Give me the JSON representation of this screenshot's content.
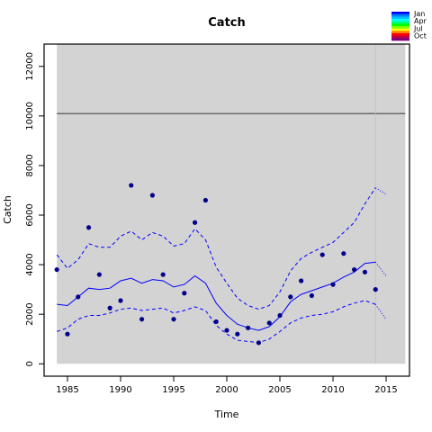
{
  "chart_data": {
    "type": "line",
    "title": "Catch",
    "xlabel": "Time",
    "ylabel": "Catch",
    "xlim": [
      1982.8,
      2017.2
    ],
    "ylim": [
      -500,
      12900
    ],
    "x_ticks": [
      1985,
      1990,
      1995,
      2000,
      2005,
      2010,
      2015
    ],
    "y_ticks": [
      0,
      2000,
      4000,
      6000,
      8000,
      10000,
      12000
    ],
    "panel_x_range": [
      1984,
      2016.8
    ],
    "panel_y_range": [
      0,
      13000
    ],
    "panel_fill": "#d3d3d3",
    "reference_hline": 10100,
    "reference_vline": 2014,
    "observed": {
      "color": "#00008b",
      "x": [
        1984,
        1985,
        1986,
        1987,
        1988,
        1989,
        1990,
        1991,
        1992,
        1993,
        1994,
        1995,
        1996,
        1997,
        1998,
        1999,
        2000,
        2001,
        2002,
        2003,
        2004,
        2005,
        2006,
        2007,
        2008,
        2009,
        2010,
        2011,
        2012,
        2013,
        2014
      ],
      "y": [
        3800,
        1200,
        2700,
        5500,
        3600,
        2250,
        2550,
        7200,
        1800,
        6800,
        3600,
        1800,
        2850,
        5700,
        6600,
        1700,
        1350,
        1200,
        1450,
        850,
        1650,
        1950,
        2700,
        3350,
        2750,
        4400,
        3200,
        4450,
        3800,
        3700,
        3000
      ]
    },
    "fit": {
      "color": "#0000ff",
      "x": [
        1984,
        1985,
        1986,
        1987,
        1988,
        1989,
        1990,
        1991,
        1992,
        1993,
        1994,
        1995,
        1996,
        1997,
        1998,
        1999,
        2000,
        2001,
        2002,
        2003,
        2004,
        2005,
        2006,
        2007,
        2008,
        2009,
        2010,
        2011,
        2012,
        2013,
        2014
      ],
      "y": [
        2400,
        2350,
        2700,
        3050,
        3000,
        3050,
        3350,
        3450,
        3250,
        3400,
        3350,
        3100,
        3200,
        3550,
        3250,
        2450,
        1950,
        1600,
        1450,
        1350,
        1500,
        1900,
        2500,
        2800,
        2950,
        3100,
        3250,
        3500,
        3700,
        4050,
        4100
      ],
      "upper": [
        4400,
        3850,
        4200,
        4850,
        4700,
        4700,
        5150,
        5350,
        5000,
        5300,
        5150,
        4750,
        4850,
        5450,
        5000,
        3900,
        3250,
        2650,
        2350,
        2200,
        2350,
        2900,
        3750,
        4250,
        4500,
        4700,
        4900,
        5300,
        5700,
        6450,
        7100
      ],
      "lower": [
        1300,
        1450,
        1800,
        1950,
        1950,
        2050,
        2200,
        2250,
        2150,
        2200,
        2250,
        2050,
        2150,
        2300,
        2150,
        1550,
        1200,
        950,
        900,
        850,
        1000,
        1300,
        1650,
        1850,
        1950,
        2000,
        2100,
        2300,
        2450,
        2550,
        2400
      ]
    },
    "forecast": {
      "x": [
        2014,
        2015
      ],
      "y": [
        4100,
        3550
      ],
      "upper": [
        7100,
        6850
      ],
      "lower": [
        2400,
        1800
      ]
    },
    "legend": {
      "placement": "top-right",
      "labels": [
        "Jan",
        "Apr",
        "Jul",
        "Oct"
      ],
      "colors": [
        "#0000ff",
        "#0080ff",
        "#00c0ff",
        "#00ffff",
        "#00ff80",
        "#00ff00",
        "#80ff00",
        "#ffff00",
        "#ff8000",
        "#ff0000",
        "#c00040",
        "#800080"
      ]
    }
  }
}
